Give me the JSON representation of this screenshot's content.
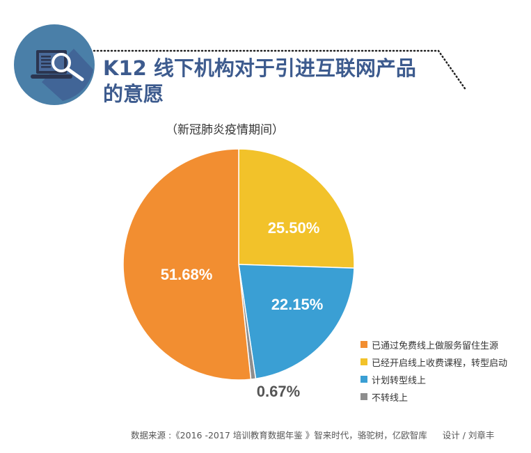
{
  "title_line1": "K12 线下机构对于引进互联网产品",
  "title_line2": "的意愿",
  "icon": "laptop-search-icon",
  "chart_data": {
    "type": "pie",
    "subtitle": "（新冠肺炎疫情期间）",
    "start": "top",
    "direction": "clockwise",
    "slices": [
      {
        "label": "已经开启线上收费课程，转型启动",
        "value": 25.5,
        "display": "25.50%",
        "color": "#f2c22a"
      },
      {
        "label": "计划转型线上",
        "value": 22.15,
        "display": "22.15%",
        "color": "#3a9fd4"
      },
      {
        "label": "不转线上",
        "value": 0.67,
        "display": "0.67%",
        "color": "#8e8e8e"
      },
      {
        "label": "已通过免费线上做服务留住生源",
        "value": 51.68,
        "display": "51.68%",
        "color": "#f28e31"
      }
    ],
    "legend_order": [
      3,
      0,
      1,
      2
    ],
    "legend_position": "bottom-right"
  },
  "footer": {
    "source": "数据来源 :《2016 -2017 培训教育数据年鉴 》智来时代，骆驼树，亿欧智库",
    "credit": "设计 / 刘章丰"
  }
}
